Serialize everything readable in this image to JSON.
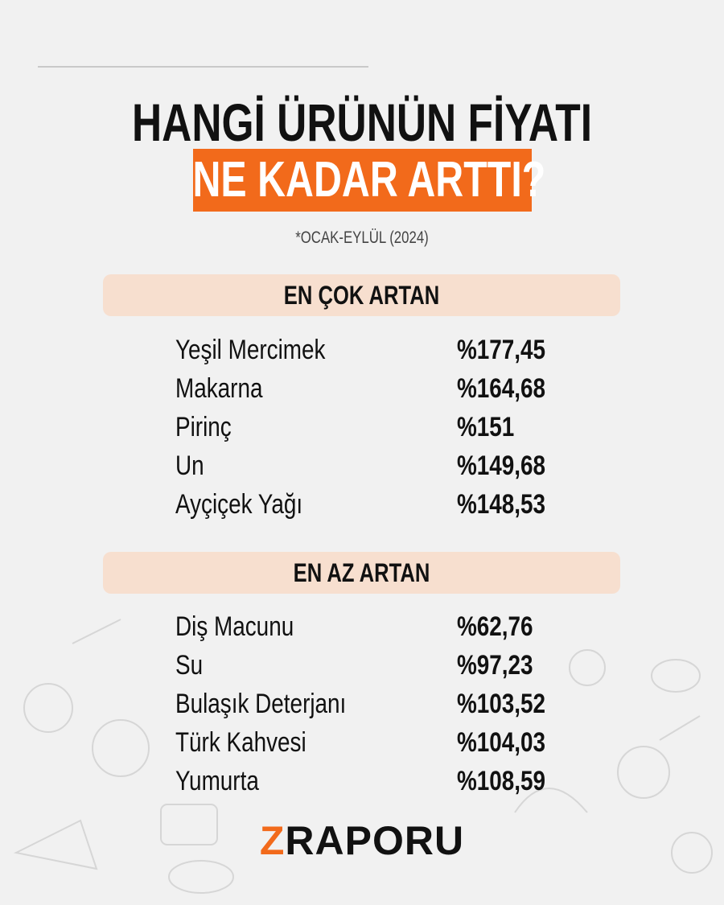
{
  "title": {
    "line1": "HANGİ ÜRÜNÜN FİYATI",
    "line2": "NE KADAR ARTTI?",
    "subtitle": "*OCAK-EYLÜL (2024)"
  },
  "sections": [
    {
      "heading": "EN ÇOK ARTAN",
      "items": [
        {
          "name": "Yeşil Mercimek",
          "value": "%177,45"
        },
        {
          "name": "Makarna",
          "value": "%164,68"
        },
        {
          "name": "Pirinç",
          "value": "%151"
        },
        {
          "name": "Un",
          "value": "%149,68"
        },
        {
          "name": "Ayçiçek Yağı",
          "value": "%148,53"
        }
      ]
    },
    {
      "heading": "EN AZ ARTAN",
      "items": [
        {
          "name": "Diş Macunu",
          "value": "%62,76"
        },
        {
          "name": "Su",
          "value": "%97,23"
        },
        {
          "name": "Bulaşık Deterjanı",
          "value": "%103,52"
        },
        {
          "name": "Türk Kahvesi",
          "value": "%104,03"
        },
        {
          "name": "Yumurta",
          "value": "%108,59"
        }
      ]
    }
  ],
  "logo": {
    "accent": "Z",
    "rest": "RAPORU"
  },
  "colors": {
    "accent": "#f26a1b",
    "band": "#f7dfcf",
    "background": "#f1f1f1"
  }
}
